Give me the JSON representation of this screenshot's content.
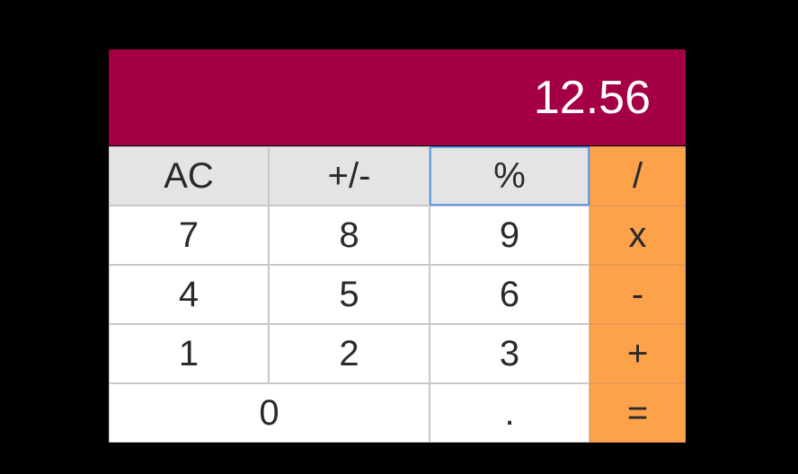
{
  "display": {
    "value": "12.56",
    "background": "#a50045"
  },
  "keys": {
    "ac": "AC",
    "plus_minus": "+/-",
    "percent": "%",
    "divide": "/",
    "seven": "7",
    "eight": "8",
    "nine": "9",
    "multiply": "x",
    "four": "4",
    "five": "5",
    "six": "6",
    "subtract": "-",
    "one": "1",
    "two": "2",
    "three": "3",
    "add": "+",
    "zero": "0",
    "decimal": ".",
    "equals": "="
  },
  "colors": {
    "function_key": "#e4e4e4",
    "digit_key": "#ffffff",
    "operator_key": "#fda24b",
    "focus_ring": "#4a8ee6"
  }
}
